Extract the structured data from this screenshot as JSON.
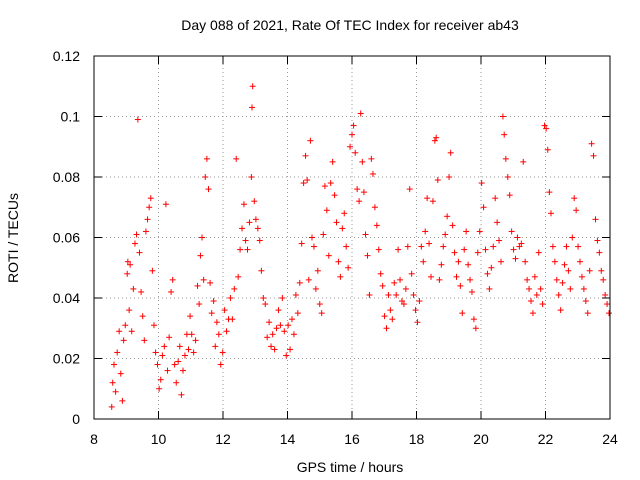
{
  "chart_data": {
    "type": "scatter",
    "title": "Day 088 of 2021, Rate Of TEC Index for receiver ab43",
    "xlabel": "GPS time / hours",
    "ylabel": "ROTI / TECUs",
    "xlim": [
      8,
      24
    ],
    "ylim": [
      0,
      0.12
    ],
    "x_ticks": [
      8,
      10,
      12,
      14,
      16,
      18,
      20,
      22,
      24
    ],
    "y_ticks": [
      0,
      0.02,
      0.04,
      0.06,
      0.08,
      0.1,
      0.12
    ],
    "x_tick_labels": [
      "8",
      "10",
      "12",
      "14",
      "16",
      "18",
      "20",
      "22",
      "24"
    ],
    "y_tick_labels": [
      "0",
      "0.02",
      "0.04",
      "0.06",
      "0.08",
      "0.1",
      "0.12"
    ],
    "grid": true,
    "legend": false,
    "marker": "plus",
    "color": "#ff0000",
    "series": [
      {
        "points": [
          [
            8.55,
            0.004
          ],
          [
            8.58,
            0.012
          ],
          [
            8.62,
            0.018
          ],
          [
            8.67,
            0.009
          ],
          [
            8.72,
            0.022
          ],
          [
            8.78,
            0.029
          ],
          [
            8.83,
            0.015
          ],
          [
            8.88,
            0.006
          ],
          [
            8.92,
            0.026
          ],
          [
            8.97,
            0.031
          ],
          [
            9.03,
            0.048
          ],
          [
            9.05,
            0.052
          ],
          [
            9.09,
            0.036
          ],
          [
            9.12,
            0.051
          ],
          [
            9.17,
            0.029
          ],
          [
            9.22,
            0.043
          ],
          [
            9.27,
            0.058
          ],
          [
            9.32,
            0.061
          ],
          [
            9.36,
            0.099
          ],
          [
            9.41,
            0.055
          ],
          [
            9.46,
            0.042
          ],
          [
            9.51,
            0.034
          ],
          [
            9.56,
            0.026
          ],
          [
            9.61,
            0.062
          ],
          [
            9.66,
            0.066
          ],
          [
            9.71,
            0.07
          ],
          [
            9.76,
            0.073
          ],
          [
            9.81,
            0.049
          ],
          [
            9.86,
            0.031
          ],
          [
            9.91,
            0.022
          ],
          [
            9.97,
            0.018
          ],
          [
            10.02,
            0.01
          ],
          [
            10.07,
            0.013
          ],
          [
            10.12,
            0.021
          ],
          [
            10.18,
            0.024
          ],
          [
            10.23,
            0.071
          ],
          [
            10.28,
            0.016
          ],
          [
            10.33,
            0.027
          ],
          [
            10.39,
            0.042
          ],
          [
            10.44,
            0.046
          ],
          [
            10.5,
            0.018
          ],
          [
            10.55,
            0.012
          ],
          [
            10.61,
            0.019
          ],
          [
            10.66,
            0.024
          ],
          [
            10.71,
            0.008
          ],
          [
            10.76,
            0.016
          ],
          [
            10.82,
            0.021
          ],
          [
            10.88,
            0.028
          ],
          [
            10.93,
            0.023
          ],
          [
            10.98,
            0.034
          ],
          [
            11.03,
            0.028
          ],
          [
            11.09,
            0.022
          ],
          [
            11.15,
            0.026
          ],
          [
            11.21,
            0.044
          ],
          [
            11.26,
            0.038
          ],
          [
            11.3,
            0.054
          ],
          [
            11.35,
            0.06
          ],
          [
            11.4,
            0.046
          ],
          [
            11.45,
            0.08
          ],
          [
            11.5,
            0.086
          ],
          [
            11.55,
            0.076
          ],
          [
            11.6,
            0.045
          ],
          [
            11.65,
            0.035
          ],
          [
            11.71,
            0.039
          ],
          [
            11.76,
            0.024
          ],
          [
            11.81,
            0.032
          ],
          [
            11.87,
            0.028
          ],
          [
            11.93,
            0.018
          ],
          [
            11.99,
            0.022
          ],
          [
            12.05,
            0.036
          ],
          [
            12.11,
            0.029
          ],
          [
            12.17,
            0.033
          ],
          [
            12.23,
            0.04
          ],
          [
            12.29,
            0.033
          ],
          [
            12.35,
            0.043
          ],
          [
            12.41,
            0.086
          ],
          [
            12.47,
            0.047
          ],
          [
            12.53,
            0.056
          ],
          [
            12.59,
            0.063
          ],
          [
            12.65,
            0.071
          ],
          [
            12.7,
            0.059
          ],
          [
            12.76,
            0.056
          ],
          [
            12.82,
            0.065
          ],
          [
            12.88,
            0.08
          ],
          [
            12.9,
            0.103
          ],
          [
            12.92,
            0.11
          ],
          [
            12.97,
            0.072
          ],
          [
            13.02,
            0.066
          ],
          [
            13.08,
            0.063
          ],
          [
            13.14,
            0.059
          ],
          [
            13.19,
            0.049
          ],
          [
            13.25,
            0.04
          ],
          [
            13.31,
            0.038
          ],
          [
            13.37,
            0.027
          ],
          [
            13.43,
            0.032
          ],
          [
            13.49,
            0.024
          ],
          [
            13.54,
            0.028
          ],
          [
            13.6,
            0.023
          ],
          [
            13.66,
            0.03
          ],
          [
            13.72,
            0.036
          ],
          [
            13.78,
            0.031
          ],
          [
            13.84,
            0.04
          ],
          [
            13.9,
            0.029
          ],
          [
            13.96,
            0.021
          ],
          [
            14.02,
            0.031
          ],
          [
            14.08,
            0.023
          ],
          [
            14.14,
            0.033
          ],
          [
            14.2,
            0.028
          ],
          [
            14.26,
            0.041
          ],
          [
            14.32,
            0.035
          ],
          [
            14.38,
            0.045
          ],
          [
            14.44,
            0.058
          ],
          [
            14.5,
            0.078
          ],
          [
            14.56,
            0.087
          ],
          [
            14.61,
            0.079
          ],
          [
            14.66,
            0.046
          ],
          [
            14.71,
            0.092
          ],
          [
            14.76,
            0.06
          ],
          [
            14.82,
            0.057
          ],
          [
            14.88,
            0.043
          ],
          [
            14.94,
            0.049
          ],
          [
            15.0,
            0.038
          ],
          [
            15.06,
            0.035
          ],
          [
            15.11,
            0.061
          ],
          [
            15.16,
            0.077
          ],
          [
            15.22,
            0.069
          ],
          [
            15.28,
            0.054
          ],
          [
            15.34,
            0.078
          ],
          [
            15.4,
            0.085
          ],
          [
            15.46,
            0.074
          ],
          [
            15.52,
            0.065
          ],
          [
            15.58,
            0.052
          ],
          [
            15.64,
            0.047
          ],
          [
            15.7,
            0.063
          ],
          [
            15.76,
            0.068
          ],
          [
            15.82,
            0.057
          ],
          [
            15.88,
            0.05
          ],
          [
            15.94,
            0.09
          ],
          [
            16.0,
            0.094
          ],
          [
            16.05,
            0.097
          ],
          [
            16.1,
            0.088
          ],
          [
            16.16,
            0.076
          ],
          [
            16.22,
            0.072
          ],
          [
            16.27,
            0.101
          ],
          [
            16.32,
            0.085
          ],
          [
            16.37,
            0.075
          ],
          [
            16.42,
            0.061
          ],
          [
            16.48,
            0.054
          ],
          [
            16.54,
            0.041
          ],
          [
            16.6,
            0.086
          ],
          [
            16.65,
            0.081
          ],
          [
            16.71,
            0.07
          ],
          [
            16.77,
            0.064
          ],
          [
            16.83,
            0.056
          ],
          [
            16.89,
            0.048
          ],
          [
            16.95,
            0.044
          ],
          [
            17.01,
            0.034
          ],
          [
            17.07,
            0.03
          ],
          [
            17.13,
            0.041
          ],
          [
            17.19,
            0.036
          ],
          [
            17.25,
            0.033
          ],
          [
            17.31,
            0.045
          ],
          [
            17.37,
            0.041
          ],
          [
            17.43,
            0.056
          ],
          [
            17.49,
            0.046
          ],
          [
            17.55,
            0.039
          ],
          [
            17.61,
            0.038
          ],
          [
            17.67,
            0.043
          ],
          [
            17.73,
            0.057
          ],
          [
            17.79,
            0.076
          ],
          [
            17.85,
            0.048
          ],
          [
            17.91,
            0.041
          ],
          [
            17.97,
            0.036
          ],
          [
            18.03,
            0.032
          ],
          [
            18.09,
            0.039
          ],
          [
            18.15,
            0.057
          ],
          [
            18.21,
            0.052
          ],
          [
            18.27,
            0.062
          ],
          [
            18.33,
            0.073
          ],
          [
            18.39,
            0.058
          ],
          [
            18.45,
            0.047
          ],
          [
            18.51,
            0.072
          ],
          [
            18.57,
            0.092
          ],
          [
            18.61,
            0.093
          ],
          [
            18.66,
            0.079
          ],
          [
            18.71,
            0.046
          ],
          [
            18.77,
            0.051
          ],
          [
            18.83,
            0.057
          ],
          [
            18.89,
            0.061
          ],
          [
            18.95,
            0.067
          ],
          [
            19.01,
            0.08
          ],
          [
            19.06,
            0.088
          ],
          [
            19.12,
            0.064
          ],
          [
            19.18,
            0.055
          ],
          [
            19.24,
            0.047
          ],
          [
            19.3,
            0.052
          ],
          [
            19.36,
            0.044
          ],
          [
            19.42,
            0.035
          ],
          [
            19.48,
            0.056
          ],
          [
            19.54,
            0.062
          ],
          [
            19.6,
            0.051
          ],
          [
            19.66,
            0.046
          ],
          [
            19.72,
            0.042
          ],
          [
            19.78,
            0.033
          ],
          [
            19.84,
            0.03
          ],
          [
            19.9,
            0.055
          ],
          [
            19.96,
            0.062
          ],
          [
            20.02,
            0.078
          ],
          [
            20.08,
            0.07
          ],
          [
            20.14,
            0.056
          ],
          [
            20.2,
            0.048
          ],
          [
            20.26,
            0.043
          ],
          [
            20.32,
            0.05
          ],
          [
            20.38,
            0.057
          ],
          [
            20.44,
            0.073
          ],
          [
            20.5,
            0.065
          ],
          [
            20.56,
            0.059
          ],
          [
            20.62,
            0.052
          ],
          [
            20.68,
            0.1
          ],
          [
            20.72,
            0.094
          ],
          [
            20.77,
            0.086
          ],
          [
            20.83,
            0.08
          ],
          [
            20.89,
            0.074
          ],
          [
            20.95,
            0.062
          ],
          [
            21.01,
            0.056
          ],
          [
            21.07,
            0.053
          ],
          [
            21.13,
            0.06
          ],
          [
            21.19,
            0.057
          ],
          [
            21.25,
            0.058
          ],
          [
            21.31,
            0.085
          ],
          [
            21.37,
            0.052
          ],
          [
            21.43,
            0.046
          ],
          [
            21.49,
            0.043
          ],
          [
            21.55,
            0.039
          ],
          [
            21.61,
            0.035
          ],
          [
            21.67,
            0.047
          ],
          [
            21.73,
            0.041
          ],
          [
            21.79,
            0.055
          ],
          [
            21.85,
            0.043
          ],
          [
            21.91,
            0.038
          ],
          [
            21.97,
            0.097
          ],
          [
            22.02,
            0.096
          ],
          [
            22.07,
            0.089
          ],
          [
            22.12,
            0.075
          ],
          [
            22.17,
            0.068
          ],
          [
            22.23,
            0.057
          ],
          [
            22.29,
            0.052
          ],
          [
            22.35,
            0.046
          ],
          [
            22.41,
            0.041
          ],
          [
            22.47,
            0.036
          ],
          [
            22.53,
            0.045
          ],
          [
            22.59,
            0.051
          ],
          [
            22.65,
            0.057
          ],
          [
            22.71,
            0.049
          ],
          [
            22.77,
            0.043
          ],
          [
            22.83,
            0.06
          ],
          [
            22.89,
            0.073
          ],
          [
            22.95,
            0.069
          ],
          [
            23.01,
            0.057
          ],
          [
            23.07,
            0.052
          ],
          [
            23.13,
            0.047
          ],
          [
            23.19,
            0.043
          ],
          [
            23.25,
            0.039
          ],
          [
            23.31,
            0.035
          ],
          [
            23.37,
            0.049
          ],
          [
            23.43,
            0.091
          ],
          [
            23.49,
            0.087
          ],
          [
            23.55,
            0.066
          ],
          [
            23.61,
            0.059
          ],
          [
            23.67,
            0.055
          ],
          [
            23.73,
            0.049
          ],
          [
            23.79,
            0.046
          ],
          [
            23.85,
            0.041
          ],
          [
            23.91,
            0.038
          ],
          [
            23.97,
            0.035
          ]
        ]
      }
    ]
  }
}
